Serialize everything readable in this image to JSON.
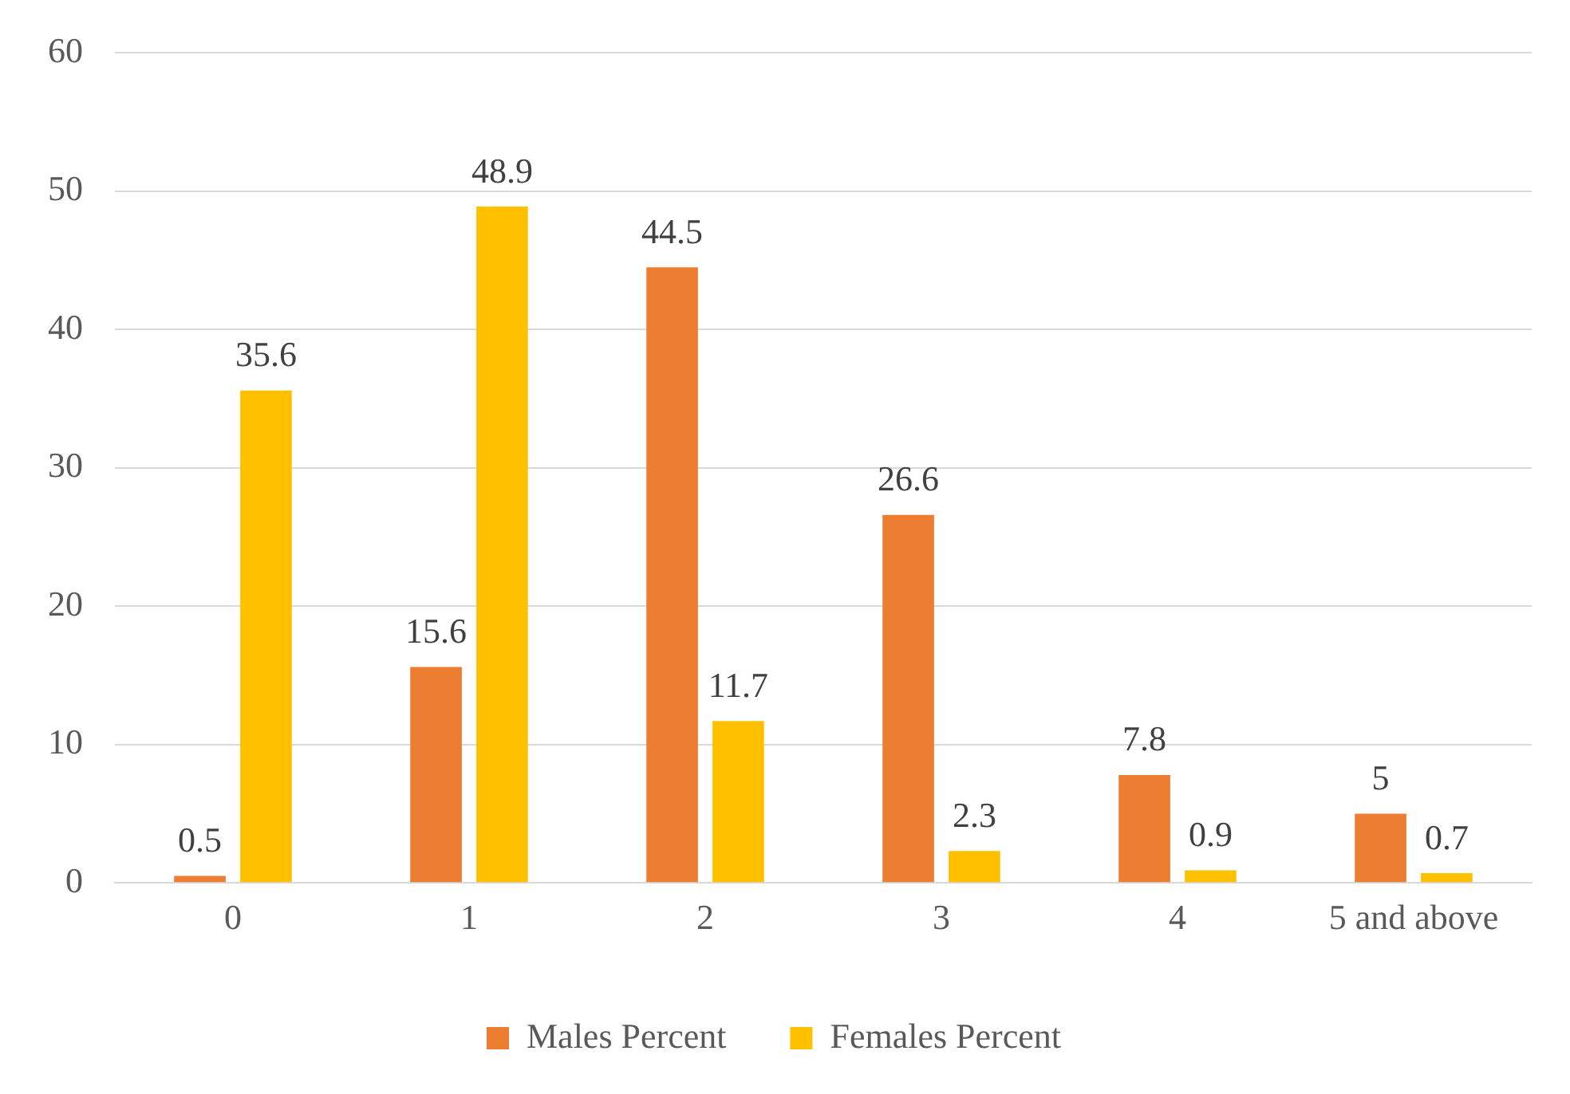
{
  "chart_data": {
    "type": "bar",
    "categories": [
      "0",
      "1",
      "2",
      "3",
      "4",
      "5 and above"
    ],
    "series": [
      {
        "name": "Males Percent",
        "color": "#ed7d31",
        "values": [
          0.5,
          15.6,
          44.5,
          26.6,
          7.8,
          5
        ]
      },
      {
        "name": "Females Percent",
        "color": "#ffc000",
        "values": [
          35.6,
          48.9,
          11.7,
          2.3,
          0.9,
          0.7
        ]
      }
    ],
    "ylim": [
      0,
      60
    ],
    "yticks": [
      0,
      10,
      20,
      30,
      40,
      50,
      60
    ],
    "grid": "y",
    "legend": "bottom",
    "data_labels": true
  }
}
